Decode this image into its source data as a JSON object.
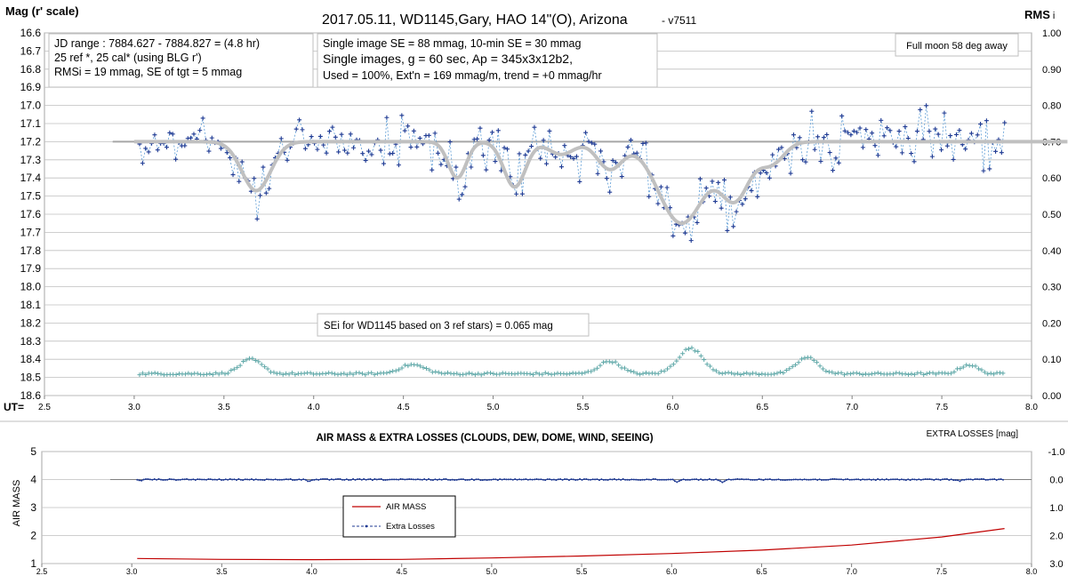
{
  "chart_data": [
    {
      "type": "scatter",
      "title": "2017.05.11,  WD1145,Gary, HAO  14\"(O), Arizona",
      "version": "- v7511",
      "ylabel_left": "Mag (r' scale)",
      "ylabel_right": "RMS",
      "ylabel_right_sub": "i",
      "xlabel": "UT=",
      "xlim": [
        2.5,
        8.0
      ],
      "ylim_left": [
        16.6,
        18.6
      ],
      "ylim_right": [
        0.0,
        1.0
      ],
      "x_ticks": [
        "2.5",
        "3.0",
        "3.5",
        "4.0",
        "4.5",
        "5.0",
        "5.5",
        "6.0",
        "6.5",
        "7.0",
        "7.5",
        "8.0"
      ],
      "y_left_ticks": [
        "16.6",
        "16.7",
        "16.8",
        "16.9",
        "17.0",
        "17.1",
        "17.2",
        "17.3",
        "17.4",
        "17.5",
        "17.6",
        "17.7",
        "17.8",
        "17.9",
        "18.0",
        "18.1",
        "18.2",
        "18.3",
        "18.4",
        "18.5",
        "18.6"
      ],
      "y_right_ticks": [
        "1.00",
        "0.90",
        "0.80",
        "0.70",
        "0.60",
        "0.50",
        "0.40",
        "0.30",
        "0.20",
        "0.10",
        "0.00"
      ],
      "grid": true,
      "info_box_1": [
        "JD range  : 7884.627 - 7884.827  = (4.8 hr)",
        "25 ref *, 25 cal* (using BLG r')",
        "RMSi = 19 mmag, SE of tgt = 5 mmag"
      ],
      "info_box_2": [
        "Single image SE = 88 mmag, 10-min SE = 30 mmag",
        "Single images, g = 60 sec, Ap = 345x3x12b2,",
        "Used = 100%, Ext'n = 169  mmag/m, trend = +0 mmag/hr"
      ],
      "moon_note": "Full moon 58 deg away",
      "se_note": "SEi for WD1145 based on 3 ref stars) = 0.065 mag",
      "reference_level": 17.2,
      "model_dips": [
        {
          "center": 3.68,
          "depth": 0.27,
          "width": 0.08
        },
        {
          "center": 4.8,
          "depth": 0.2,
          "width": 0.05
        },
        {
          "center": 5.12,
          "depth": 0.25,
          "width": 0.06
        },
        {
          "center": 5.38,
          "depth": 0.07,
          "width": 0.07
        },
        {
          "center": 5.65,
          "depth": 0.15,
          "width": 0.07
        },
        {
          "center": 6.05,
          "depth": 0.45,
          "width": 0.13
        },
        {
          "center": 6.35,
          "depth": 0.3,
          "width": 0.08
        },
        {
          "center": 6.55,
          "depth": 0.12,
          "width": 0.07
        }
      ],
      "rms_baseline": 0.06,
      "rms_bumps": [
        {
          "center": 3.65,
          "height": 0.04,
          "width": 0.06
        },
        {
          "center": 4.55,
          "height": 0.025,
          "width": 0.07
        },
        {
          "center": 5.65,
          "height": 0.035,
          "width": 0.06
        },
        {
          "center": 6.1,
          "height": 0.07,
          "width": 0.07
        },
        {
          "center": 6.75,
          "height": 0.045,
          "width": 0.06
        },
        {
          "center": 7.65,
          "height": 0.025,
          "width": 0.05
        }
      ],
      "series": [
        {
          "kind": "observed",
          "color": "#1f3a93",
          "x_start": 3.03,
          "x_end": 7.85,
          "n_points": 288,
          "noise_mag": 0.07
        },
        {
          "kind": "model",
          "color": "#c0c0c0"
        },
        {
          "kind": "reference",
          "color": "#a6a6a6"
        },
        {
          "kind": "rms",
          "color": "#5fa8a8"
        }
      ]
    },
    {
      "type": "line",
      "title": "AIR MASS & EXTRA LOSSES (CLOUDS, DEW, DOME, WIND, SEEING)",
      "ylabel_left": "AIR MASS",
      "ylabel_right": "EXTRA LOSSES [mag]",
      "xlim": [
        2.5,
        8.0
      ],
      "ylim_left": [
        1,
        5
      ],
      "ylim_right": [
        -1.0,
        3.0
      ],
      "x_ticks": [
        "2.5",
        "3.0",
        "3.5",
        "4.0",
        "4.5",
        "5.0",
        "5.5",
        "6.0",
        "6.5",
        "7.0",
        "7.5",
        "8.0"
      ],
      "y_left_ticks": [
        "5",
        "4",
        "3",
        "2",
        "1"
      ],
      "y_right_ticks": [
        "-1.0",
        "0.0",
        "1.0",
        "2.0",
        "3.0"
      ],
      "legend": [
        "AIR MASS",
        "Extra Losses"
      ],
      "legend_position": "center-left",
      "air_mass": {
        "x": [
          3.03,
          3.5,
          4.0,
          4.5,
          5.0,
          5.5,
          6.0,
          6.5,
          7.0,
          7.5,
          7.85
        ],
        "y": [
          1.18,
          1.15,
          1.14,
          1.15,
          1.2,
          1.27,
          1.36,
          1.48,
          1.66,
          1.95,
          2.25
        ]
      },
      "extra_losses_level": 0.0,
      "extra_losses_dips": [
        {
          "center": 3.05,
          "depth": 0.06
        },
        {
          "center": 3.98,
          "depth": 0.06
        },
        {
          "center": 6.03,
          "depth": 0.08
        },
        {
          "center": 6.28,
          "depth": 0.11
        },
        {
          "center": 7.6,
          "depth": 0.05
        }
      ],
      "series": [
        {
          "name": "AIR MASS",
          "color": "#c00000"
        },
        {
          "name": "Extra Losses",
          "color": "#1f3a93"
        },
        {
          "kind": "baseline",
          "color": "#808080"
        }
      ]
    }
  ]
}
